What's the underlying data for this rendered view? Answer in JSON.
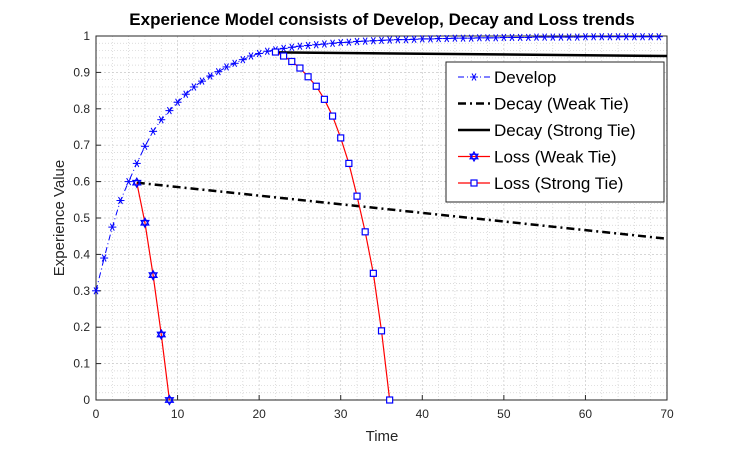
{
  "chart_data": {
    "type": "line",
    "title": "Experience Model consists of Develop, Decay and Loss trends",
    "xlabel": "Time",
    "ylabel": "Experience Value",
    "xlim": [
      0,
      70
    ],
    "ylim": [
      0,
      1
    ],
    "xticks": [
      "0",
      "10",
      "20",
      "30",
      "40",
      "50",
      "60",
      "70"
    ],
    "yticks": [
      "0",
      "0.1",
      "0.2",
      "0.3",
      "0.4",
      "0.5",
      "0.6",
      "0.7",
      "0.8",
      "0.9",
      "1"
    ],
    "grid": "on (major and minor, dotted)",
    "legend_position": "top-right",
    "colors": {
      "develop": "#0000ff",
      "decay": "#000000",
      "loss": "#ff0000",
      "loss_marker": "#0000ff",
      "grid": "#d0d0d0"
    },
    "series": [
      {
        "name": "Develop",
        "style": "dash-dot",
        "marker": "asterisk",
        "x": [
          0,
          1,
          2,
          3,
          4,
          5,
          6,
          7,
          8,
          9,
          10,
          11,
          12,
          13,
          14,
          15,
          16,
          17,
          18,
          19,
          20,
          21,
          22,
          23,
          24,
          25,
          26,
          27,
          28,
          29,
          30,
          31,
          32,
          33,
          34,
          35,
          36,
          37,
          38,
          39,
          40,
          41,
          42,
          43,
          44,
          45,
          46,
          47,
          48,
          49,
          50,
          51,
          52,
          53,
          54,
          55,
          56,
          57,
          58,
          59,
          60,
          61,
          62,
          63,
          64,
          65,
          66,
          67,
          68,
          69
        ],
        "y": [
          0.3,
          0.39,
          0.475,
          0.548,
          0.6,
          0.65,
          0.697,
          0.738,
          0.77,
          0.795,
          0.818,
          0.84,
          0.86,
          0.876,
          0.89,
          0.902,
          0.915,
          0.925,
          0.935,
          0.945,
          0.952,
          0.958,
          0.962,
          0.966,
          0.969,
          0.972,
          0.974,
          0.976,
          0.978,
          0.98,
          0.982,
          0.983,
          0.985,
          0.986,
          0.987,
          0.988,
          0.989,
          0.99,
          0.99,
          0.991,
          0.992,
          0.992,
          0.993,
          0.993,
          0.994,
          0.994,
          0.994,
          0.995,
          0.995,
          0.995,
          0.996,
          0.996,
          0.996,
          0.996,
          0.997,
          0.997,
          0.997,
          0.997,
          0.997,
          0.997,
          0.998,
          0.998,
          0.998,
          0.998,
          0.998,
          0.998,
          0.998,
          0.998,
          0.998,
          0.998
        ]
      },
      {
        "name": "Decay (Weak Tie)",
        "style": "dash-dot",
        "marker": "none",
        "x": [
          5,
          70
        ],
        "y": [
          0.597,
          0.443
        ]
      },
      {
        "name": "Decay (Strong Tie)",
        "style": "solid",
        "marker": "none",
        "x": [
          22,
          70
        ],
        "y": [
          0.955,
          0.945
        ]
      },
      {
        "name": "Loss (Weak Tie)",
        "style": "solid",
        "marker": "hexagram",
        "x": [
          5,
          6,
          7,
          8,
          9
        ],
        "y": [
          0.597,
          0.487,
          0.343,
          0.18,
          0.0
        ]
      },
      {
        "name": "Loss (Strong Tie)",
        "style": "solid",
        "marker": "square",
        "x": [
          22,
          23,
          24,
          25,
          26,
          27,
          28,
          29,
          30,
          31,
          32,
          33,
          34,
          35,
          36
        ],
        "y": [
          0.956,
          0.945,
          0.93,
          0.912,
          0.888,
          0.862,
          0.826,
          0.78,
          0.72,
          0.65,
          0.56,
          0.462,
          0.348,
          0.19,
          0.0
        ]
      }
    ]
  }
}
